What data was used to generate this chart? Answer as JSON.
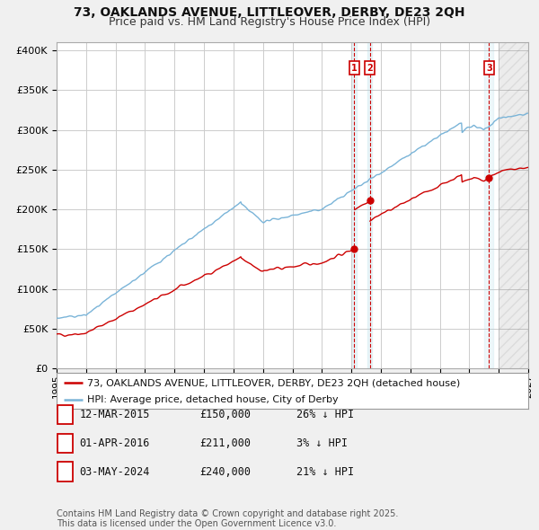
{
  "title": "73, OAKLANDS AVENUE, LITTLEOVER, DERBY, DE23 2QH",
  "subtitle": "Price paid vs. HM Land Registry's House Price Index (HPI)",
  "ylabel_ticks": [
    "£0",
    "£50K",
    "£100K",
    "£150K",
    "£200K",
    "£250K",
    "£300K",
    "£350K",
    "£400K"
  ],
  "ytick_values": [
    0,
    50000,
    100000,
    150000,
    200000,
    250000,
    300000,
    350000,
    400000
  ],
  "ylim": [
    0,
    410000
  ],
  "xlim_start": 1995,
  "xlim_end": 2027,
  "background_color": "#f0f0f0",
  "plot_bg_color": "#ffffff",
  "grid_color": "#cccccc",
  "hpi_color": "#7ab4d8",
  "price_color": "#cc0000",
  "transactions": [
    {
      "date": 2015.2,
      "price": 150000,
      "label": "1"
    },
    {
      "date": 2016.25,
      "price": 211000,
      "label": "2"
    },
    {
      "date": 2024.34,
      "price": 240000,
      "label": "3"
    }
  ],
  "transaction_table": [
    {
      "label": "1",
      "date": "12-MAR-2015",
      "price": "£150,000",
      "hpi_diff": "26% ↓ HPI"
    },
    {
      "label": "2",
      "date": "01-APR-2016",
      "price": "£211,000",
      "hpi_diff": "3% ↓ HPI"
    },
    {
      "label": "3",
      "date": "03-MAY-2024",
      "price": "£240,000",
      "hpi_diff": "21% ↓ HPI"
    }
  ],
  "legend_entries": [
    "73, OAKLANDS AVENUE, LITTLEOVER, DERBY, DE23 2QH (detached house)",
    "HPI: Average price, detached house, City of Derby"
  ],
  "footer_text": "Contains HM Land Registry data © Crown copyright and database right 2025.\nThis data is licensed under the Open Government Licence v3.0.",
  "title_fontsize": 10,
  "subtitle_fontsize": 9,
  "tick_fontsize": 8,
  "legend_fontsize": 8,
  "table_fontsize": 8.5,
  "footer_fontsize": 7
}
